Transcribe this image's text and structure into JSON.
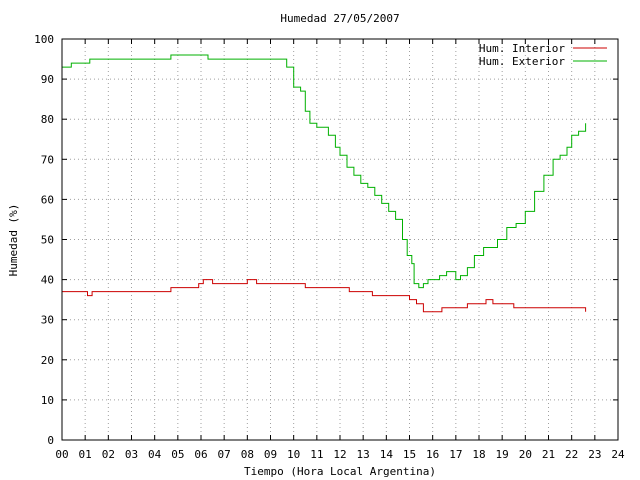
{
  "chart_data": {
    "type": "line",
    "title": "Humedad 27/05/2007",
    "xlabel": "Tiempo (Hora Local Argentina)",
    "ylabel": "Humedad (%)",
    "xlim": [
      0,
      24
    ],
    "ylim": [
      0,
      100
    ],
    "grid": true,
    "legend_position": "top-right",
    "x_ticks": [
      "00",
      "01",
      "02",
      "03",
      "04",
      "05",
      "06",
      "07",
      "08",
      "09",
      "10",
      "11",
      "12",
      "13",
      "14",
      "15",
      "16",
      "17",
      "18",
      "19",
      "20",
      "21",
      "22",
      "23",
      "24"
    ],
    "y_ticks": [
      "0",
      "10",
      "20",
      "30",
      "40",
      "50",
      "60",
      "70",
      "80",
      "90",
      "100"
    ],
    "series": [
      {
        "name": "Hum. Interior",
        "color": "#cc0000",
        "x": [
          0.0,
          1.0,
          1.1,
          1.3,
          1.5,
          4.6,
          4.7,
          5.1,
          5.9,
          6.1,
          6.5,
          7.0,
          7.5,
          8.0,
          8.4,
          9.0,
          9.9,
          10.5,
          11.5,
          12.0,
          12.4,
          13.0,
          13.4,
          14.0,
          14.5,
          15.0,
          15.3,
          15.6,
          16.0,
          16.4,
          17.0,
          17.5,
          18.0,
          18.3,
          18.6,
          19.0,
          19.5,
          20.0,
          21.0,
          22.0,
          22.5,
          22.6
        ],
        "y": [
          37,
          37,
          36,
          37,
          37,
          37,
          38,
          38,
          39,
          40,
          39,
          39,
          39,
          40,
          39,
          39,
          39,
          38,
          38,
          38,
          37,
          37,
          36,
          36,
          36,
          35,
          34,
          32,
          32,
          33,
          33,
          34,
          34,
          35,
          34,
          34,
          33,
          33,
          33,
          33,
          33,
          32
        ]
      },
      {
        "name": "Hum. Exterior",
        "color": "#00b000",
        "x": [
          0.0,
          0.3,
          0.4,
          1.0,
          1.2,
          1.4,
          1.6,
          2.0,
          3.0,
          4.0,
          4.6,
          4.7,
          5.5,
          6.2,
          6.3,
          7.5,
          9.0,
          9.5,
          9.7,
          10.0,
          10.3,
          10.5,
          10.7,
          11.0,
          11.3,
          11.5,
          11.8,
          12.0,
          12.3,
          12.6,
          12.9,
          13.2,
          13.5,
          13.8,
          14.1,
          14.4,
          14.7,
          14.9,
          15.1,
          15.2,
          15.4,
          15.6,
          15.8,
          16.0,
          16.3,
          16.6,
          17.0,
          17.2,
          17.5,
          17.8,
          18.2,
          18.5,
          18.8,
          19.2,
          19.6,
          20.0,
          20.4,
          20.8,
          21.2,
          21.5,
          21.8,
          22.0,
          22.3,
          22.5,
          22.6
        ],
        "y": [
          93,
          93,
          94,
          94,
          95,
          95,
          95,
          95,
          95,
          95,
          95,
          96,
          96,
          96,
          95,
          95,
          95,
          95,
          93,
          88,
          87,
          82,
          79,
          78,
          78,
          76,
          73,
          71,
          68,
          66,
          64,
          63,
          61,
          59,
          57,
          55,
          50,
          46,
          44,
          39,
          38,
          39,
          40,
          40,
          41,
          42,
          40,
          41,
          43,
          46,
          48,
          48,
          50,
          53,
          54,
          57,
          62,
          66,
          70,
          71,
          73,
          76,
          77,
          77,
          79
        ]
      }
    ]
  }
}
